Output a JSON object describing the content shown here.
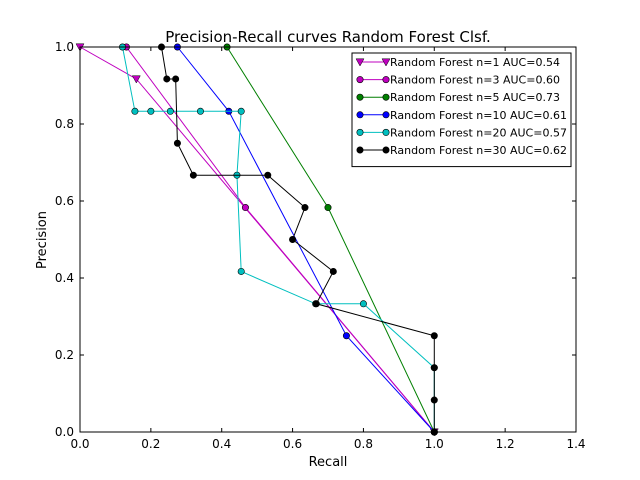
{
  "chart_data": {
    "type": "line",
    "title": "Precision-Recall curves Random Forest Clsf.",
    "xlabel": "Recall",
    "ylabel": "Precision",
    "xlim": [
      0.0,
      1.4
    ],
    "ylim": [
      0.0,
      1.0
    ],
    "x_ticks": [
      "0.0",
      "0.2",
      "0.4",
      "0.6",
      "0.8",
      "1.0",
      "1.2",
      "1.4"
    ],
    "y_ticks": [
      "0.0",
      "0.2",
      "0.4",
      "0.6",
      "0.8",
      "1.0"
    ],
    "grid": false,
    "legend_position": "top-right",
    "series": [
      {
        "name": "Random Forest n=1  AUC=0.54",
        "color": "#bf00bf",
        "marker": "triangle-down",
        "x": [
          0.0,
          0.159,
          1.0
        ],
        "y": [
          1.0,
          0.917,
          0.0
        ]
      },
      {
        "name": "Random Forest n=3 AUC=0.60",
        "color": "#bf00bf",
        "marker": "circle",
        "x": [
          0.131,
          0.467,
          1.0
        ],
        "y": [
          1.0,
          0.583,
          0.0
        ]
      },
      {
        "name": "Random Forest n=5 AUC=0.73",
        "color": "#007f00",
        "marker": "circle",
        "x": [
          0.415,
          0.7,
          1.0
        ],
        "y": [
          1.0,
          0.583,
          0.0
        ]
      },
      {
        "name": "Random Forest n=10 AUC=0.61",
        "color": "#0000ff",
        "marker": "circle",
        "x": [
          0.275,
          0.42,
          0.752,
          1.0
        ],
        "y": [
          1.0,
          0.833,
          0.25,
          0.0
        ]
      },
      {
        "name": "Random Forest n=20 AUC=0.57",
        "color": "#00bfbf",
        "marker": "circle",
        "x": [
          0.12,
          0.155,
          0.2,
          0.255,
          0.34,
          0.455,
          0.443,
          0.455,
          0.665,
          0.8,
          1.0,
          1.0
        ],
        "y": [
          1.0,
          0.833,
          0.833,
          0.833,
          0.833,
          0.833,
          0.667,
          0.417,
          0.333,
          0.333,
          0.167,
          0.0
        ]
      },
      {
        "name": "Random Forest n=30 AUC=0.62",
        "color": "#000000",
        "marker": "circle",
        "x": [
          0.23,
          0.245,
          0.27,
          0.275,
          0.32,
          0.53,
          0.635,
          0.6,
          0.715,
          0.667,
          1.0,
          1.0,
          1.0,
          1.0
        ],
        "y": [
          1.0,
          0.917,
          0.917,
          0.75,
          0.667,
          0.667,
          0.583,
          0.5,
          0.417,
          0.333,
          0.25,
          0.167,
          0.083,
          0.0
        ]
      }
    ]
  }
}
